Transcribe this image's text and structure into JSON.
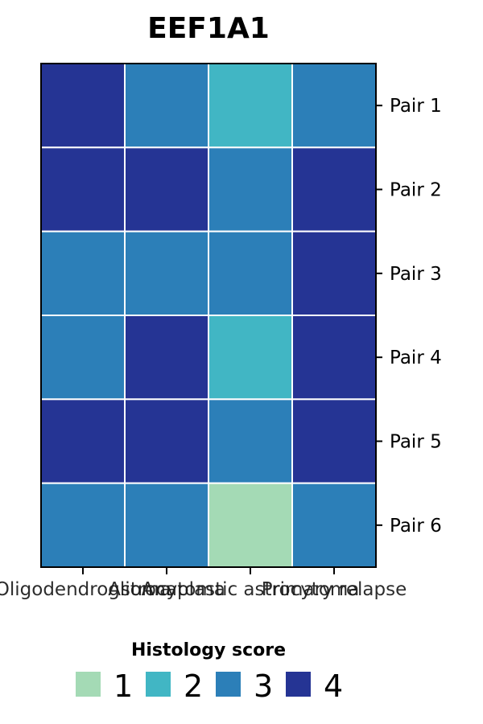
{
  "chart_data": {
    "type": "heatmap",
    "title": "EEF1A1",
    "columns": [
      "Oligodendroglioma",
      "Astrocytoma",
      "Anaplastic astrocytoma",
      "Primary relapse"
    ],
    "rows": [
      "Pair 1",
      "Pair 2",
      "Pair 3",
      "Pair 4",
      "Pair 5",
      "Pair 6"
    ],
    "values": [
      [
        4,
        3,
        2,
        3
      ],
      [
        4,
        4,
        3,
        4
      ],
      [
        3,
        3,
        3,
        4
      ],
      [
        3,
        4,
        2,
        4
      ],
      [
        4,
        4,
        3,
        4
      ],
      [
        3,
        3,
        1,
        3
      ]
    ],
    "legend": {
      "title": "Histology score",
      "placement": "bottom",
      "levels": [
        {
          "label": "1",
          "value": 1,
          "color": "#a4dab5"
        },
        {
          "label": "2",
          "value": 2,
          "color": "#41b6c4"
        },
        {
          "label": "3",
          "value": 3,
          "color": "#2c7fb8"
        },
        {
          "label": "4",
          "value": 4,
          "color": "#253494"
        }
      ]
    },
    "grid": true,
    "row_label_side": "right"
  }
}
